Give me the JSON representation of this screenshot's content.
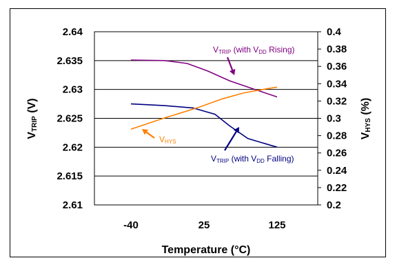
{
  "chart_data": {
    "type": "line",
    "xlabel": "Temperature (°C)",
    "x_categories": [
      "-40",
      "25",
      "125"
    ],
    "ylabel_left": {
      "main": "V",
      "sub": "TRIP",
      "suffix": " (V)"
    },
    "ylabel_right": {
      "main": "V",
      "sub": "HYS",
      "suffix": " (%)"
    },
    "yleft_ticks": [
      "2.64",
      "2.635",
      "2.63",
      "2.625",
      "2.62",
      "2.615",
      "2.61"
    ],
    "yright_ticks": [
      "0.4",
      "0.38",
      "0.36",
      "0.34",
      "0.32",
      "0.3",
      "0.28",
      "0.26",
      "0.24",
      "0.22",
      "0.2"
    ],
    "yleft_range": [
      2.61,
      2.64
    ],
    "yright_range": [
      0.2,
      0.4
    ],
    "x_range": [
      -40,
      125
    ],
    "grid": "horizontal",
    "series": [
      {
        "key": "rising",
        "axis": "left",
        "color": "#800080",
        "points": [
          [
            -40,
            2.6351
          ],
          [
            -10,
            2.635
          ],
          [
            10,
            2.6345
          ],
          [
            30,
            2.6332
          ],
          [
            60,
            2.6315
          ],
          [
            90,
            2.6302
          ],
          [
            125,
            2.6287
          ]
        ]
      },
      {
        "key": "falling",
        "axis": "left",
        "color": "#000080",
        "points": [
          [
            -40,
            2.6275
          ],
          [
            -10,
            2.6272
          ],
          [
            15,
            2.6268
          ],
          [
            40,
            2.6257
          ],
          [
            60,
            2.6237
          ],
          [
            85,
            2.6215
          ],
          [
            125,
            2.62
          ]
        ]
      },
      {
        "key": "hys",
        "axis": "right",
        "color": "#FF8000",
        "points": [
          [
            -40,
            0.2875
          ],
          [
            -10,
            0.3005
          ],
          [
            20,
            0.3125
          ],
          [
            50,
            0.3225
          ],
          [
            80,
            0.3295
          ],
          [
            110,
            0.334
          ],
          [
            125,
            0.336
          ]
        ]
      }
    ],
    "annotations": [
      {
        "key": "rising",
        "color": "#800080",
        "parts": [
          [
            "V",
            ""
          ],
          [
            "TRIP",
            "sub"
          ],
          [
            " (with V",
            ""
          ],
          [
            "DD",
            "sub"
          ],
          [
            " Rising)",
            ""
          ]
        ]
      },
      {
        "key": "falling",
        "color": "#000080",
        "parts": [
          [
            "V",
            ""
          ],
          [
            "TRIP",
            "sub"
          ],
          [
            " (with V",
            ""
          ],
          [
            "DD",
            "sub"
          ],
          [
            " Falling)",
            ""
          ]
        ]
      },
      {
        "key": "hys",
        "color": "#FF8000",
        "parts": [
          [
            "V",
            ""
          ],
          [
            "HYS",
            "sub"
          ]
        ]
      }
    ]
  }
}
